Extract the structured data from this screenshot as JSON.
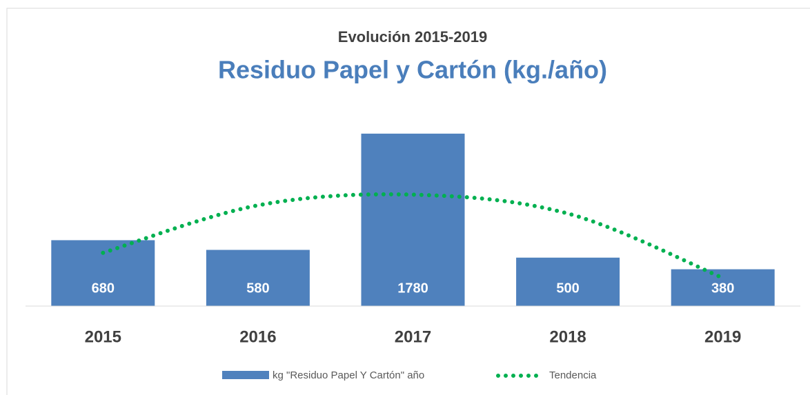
{
  "chart_data": {
    "type": "bar",
    "title": "Evolución 2015-2019",
    "subtitle": "Residuo Papel y Cartón (kg./año)",
    "categories": [
      "2015",
      "2016",
      "2017",
      "2018",
      "2019"
    ],
    "series": [
      {
        "name": "kg \"Residuo Papel Y Cartón\" año",
        "color": "#4f81bd",
        "values": [
          680,
          580,
          1780,
          500,
          380
        ]
      },
      {
        "name": "Tendencia",
        "type": "line",
        "color": "#00b050",
        "values": [
          550,
          1040,
          1150,
          955,
          290
        ]
      }
    ],
    "ylim": [
      0,
      1900
    ]
  }
}
